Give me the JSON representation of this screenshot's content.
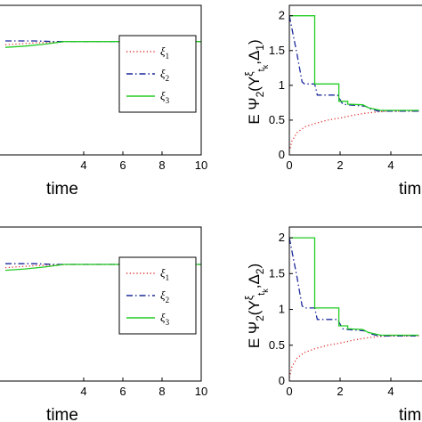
{
  "chart_data": [
    {
      "type": "line",
      "xlabel": "time",
      "ylabel": "",
      "xticks": [
        "4",
        "6",
        "8",
        "10"
      ],
      "yticks": [],
      "xlim": [
        0,
        10
      ],
      "ylim": [
        0,
        2.35
      ],
      "legend": {
        "placement": "right",
        "entries": [
          "ξ",
          "ξ",
          "ξ"
        ],
        "subscripts": [
          "1",
          "2",
          "3"
        ]
      },
      "series": [
        {
          "name": "ξ1",
          "color": "#e0302e",
          "style": "dotted",
          "x": [
            0,
            0.5,
            1.5,
            2.5,
            3.2,
            10
          ],
          "y": [
            1.73,
            1.74,
            1.76,
            1.77,
            1.78,
            1.78
          ]
        },
        {
          "name": "ξ2",
          "color": "#1c2a9c",
          "style": "dashdot",
          "x": [
            0,
            1.5,
            2.5,
            3.2,
            10
          ],
          "y": [
            1.79,
            1.79,
            1.78,
            1.78,
            1.78
          ]
        },
        {
          "name": "ξ3",
          "color": "#22cc22",
          "style": "solid",
          "x": [
            0,
            1.0,
            2.0,
            3.0,
            10
          ],
          "y": [
            1.69,
            1.71,
            1.74,
            1.78,
            1.78
          ]
        }
      ]
    },
    {
      "type": "line",
      "xlabel": "tim",
      "ylabel": "E Ψ2(Yξ_tk, Δ1)",
      "ylabel_parts": {
        "main": "E Ψ",
        "sub": "2",
        "paren": "(Y",
        "sup": "ξ",
        "sub2": "t",
        "sub3": "k",
        "comma": ",Δ",
        "sub4": "1",
        "close": ")"
      },
      "xticks": [
        "0",
        "2",
        "4"
      ],
      "yticks": [
        "0",
        "0.5",
        "1",
        "1.5",
        "2"
      ],
      "xlim": [
        0,
        5.1
      ],
      "ylim": [
        0,
        2.15
      ],
      "series": [
        {
          "name": "ξ1",
          "color": "#e0302e",
          "style": "dotted",
          "x": [
            0,
            0.1,
            0.3,
            0.6,
            1.0,
            1.5,
            2.0,
            2.5,
            3.0,
            3.5,
            4.0,
            5.1
          ],
          "y": [
            0.05,
            0.2,
            0.32,
            0.4,
            0.45,
            0.5,
            0.53,
            0.57,
            0.6,
            0.62,
            0.63,
            0.63
          ]
        },
        {
          "name": "ξ2",
          "color": "#1c2a9c",
          "style": "dashdot",
          "x": [
            0,
            0.3,
            0.5,
            0.6,
            1.0,
            1.1,
            1.9,
            2.1,
            2.3,
            3.0,
            3.2,
            3.5,
            5.1
          ],
          "y": [
            2.0,
            1.45,
            1.05,
            1.02,
            1.02,
            0.86,
            0.86,
            0.73,
            0.72,
            0.7,
            0.66,
            0.63,
            0.63
          ]
        },
        {
          "name": "ξ3",
          "color": "#22cc22",
          "style": "solid",
          "x": [
            0,
            1.0,
            1.0,
            1.95,
            1.95,
            2.3,
            2.3,
            2.9,
            3.1,
            3.6,
            5.1
          ],
          "y": [
            2.0,
            2.0,
            1.02,
            1.02,
            0.77,
            0.77,
            0.73,
            0.72,
            0.68,
            0.64,
            0.64
          ]
        }
      ]
    },
    {
      "type": "line",
      "xlabel": "time",
      "ylabel": "",
      "xticks": [
        "4",
        "6",
        "8",
        "10"
      ],
      "yticks": [],
      "xlim": [
        0,
        10
      ],
      "ylim": [
        0,
        2.35
      ],
      "legend": {
        "placement": "right",
        "entries": [
          "ξ",
          "ξ",
          "ξ"
        ],
        "subscripts": [
          "1",
          "2",
          "3"
        ]
      },
      "series": [
        {
          "name": "ξ1",
          "color": "#e0302e",
          "style": "dotted",
          "x": [
            0,
            0.5,
            1.5,
            2.5,
            3.2,
            10
          ],
          "y": [
            1.73,
            1.74,
            1.76,
            1.77,
            1.78,
            1.78
          ]
        },
        {
          "name": "ξ2",
          "color": "#1c2a9c",
          "style": "dashdot",
          "x": [
            0,
            1.5,
            2.5,
            3.2,
            10
          ],
          "y": [
            1.79,
            1.79,
            1.78,
            1.78,
            1.78
          ]
        },
        {
          "name": "ξ3",
          "color": "#22cc22",
          "style": "solid",
          "x": [
            0,
            1.0,
            2.0,
            3.0,
            10
          ],
          "y": [
            1.69,
            1.71,
            1.74,
            1.78,
            1.78
          ]
        }
      ]
    },
    {
      "type": "line",
      "xlabel": "tim",
      "ylabel": "E Ψ2(Yξ_tk, Δ2)",
      "ylabel_parts": {
        "main": "E Ψ",
        "sub": "2",
        "paren": "(Y",
        "sup": "ξ",
        "sub2": "t",
        "sub3": "k",
        "comma": ",Δ",
        "sub4": "2",
        "close": ")"
      },
      "xticks": [
        "0",
        "2",
        "4"
      ],
      "yticks": [
        "0",
        "0.5",
        "1",
        "1.5",
        "2"
      ],
      "xlim": [
        0,
        5.1
      ],
      "ylim": [
        0,
        2.15
      ],
      "series": [
        {
          "name": "ξ1",
          "color": "#e0302e",
          "style": "dotted",
          "x": [
            0,
            0.1,
            0.3,
            0.6,
            1.0,
            1.5,
            2.0,
            2.5,
            3.0,
            3.5,
            4.0,
            5.1
          ],
          "y": [
            0.05,
            0.2,
            0.32,
            0.4,
            0.45,
            0.5,
            0.53,
            0.57,
            0.6,
            0.62,
            0.63,
            0.63
          ]
        },
        {
          "name": "ξ2",
          "color": "#1c2a9c",
          "style": "dashdot",
          "x": [
            0,
            0.3,
            0.5,
            0.6,
            1.0,
            1.1,
            1.9,
            2.1,
            2.3,
            3.0,
            3.2,
            3.5,
            5.1
          ],
          "y": [
            2.0,
            1.45,
            1.05,
            1.02,
            1.02,
            0.86,
            0.86,
            0.73,
            0.72,
            0.7,
            0.66,
            0.63,
            0.63
          ]
        },
        {
          "name": "ξ3",
          "color": "#22cc22",
          "style": "solid",
          "x": [
            0,
            1.0,
            1.0,
            1.95,
            1.95,
            2.3,
            2.3,
            2.9,
            3.1,
            3.6,
            5.1
          ],
          "y": [
            2.0,
            2.0,
            1.02,
            1.02,
            0.77,
            0.77,
            0.73,
            0.72,
            0.68,
            0.64,
            0.64
          ]
        }
      ]
    }
  ]
}
